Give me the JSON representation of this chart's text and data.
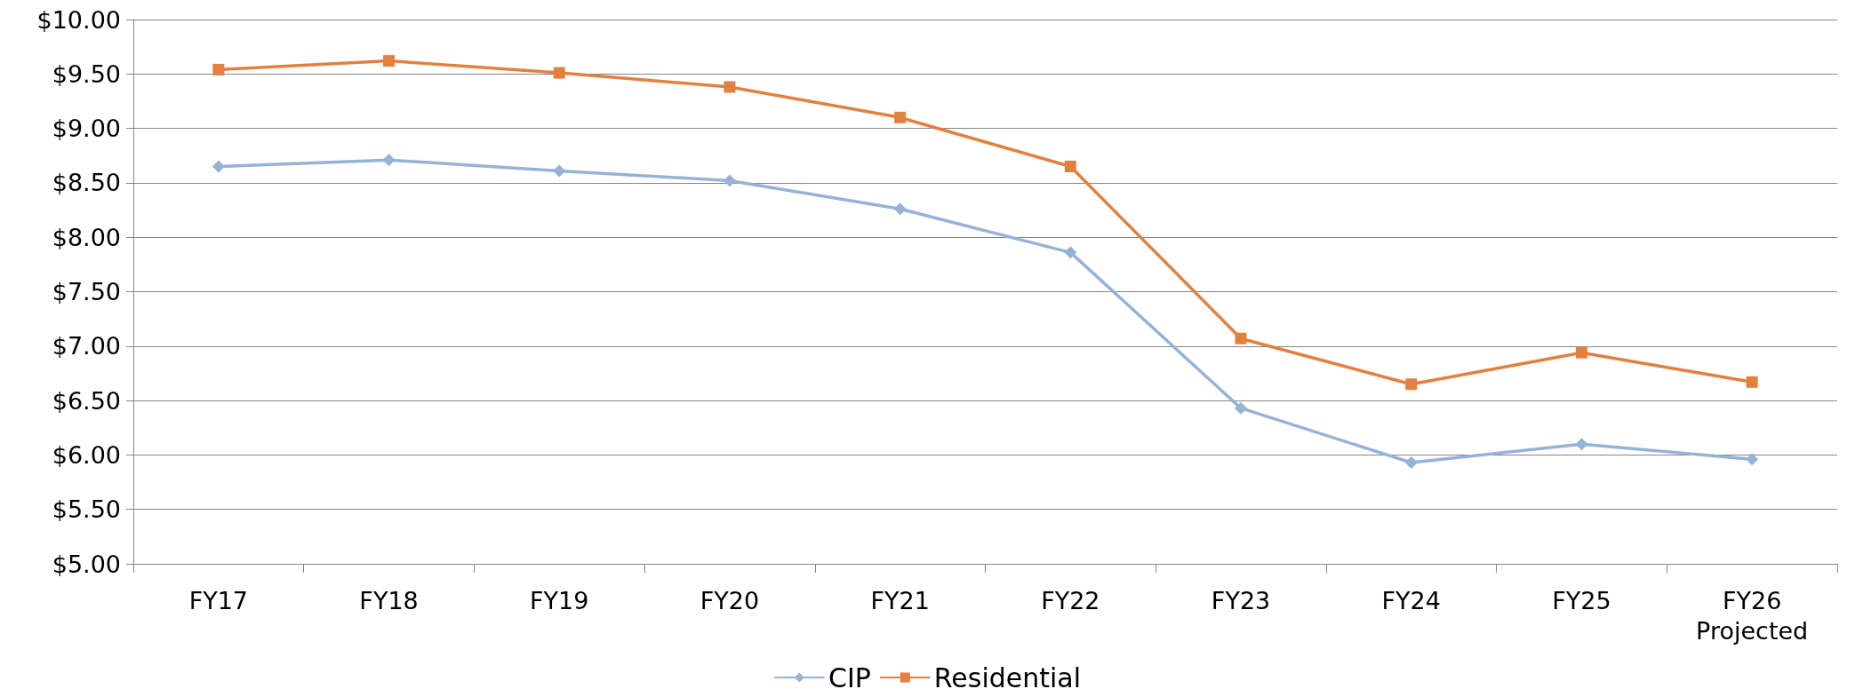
{
  "chart_data": {
    "type": "line",
    "categories": [
      "FY17",
      "FY18",
      "FY19",
      "FY20",
      "FY21",
      "FY22",
      "FY23",
      "FY24",
      "FY25",
      "FY26\nProjected"
    ],
    "series": [
      {
        "name": "CIP",
        "color": "#95b3d7",
        "marker": "diamond",
        "values": [
          8.65,
          8.71,
          8.61,
          8.52,
          8.26,
          7.86,
          6.43,
          5.93,
          6.1,
          5.96
        ]
      },
      {
        "name": "Residential",
        "color": "#e4803f",
        "marker": "square",
        "values": [
          9.54,
          9.62,
          9.51,
          9.38,
          9.1,
          8.65,
          7.07,
          6.65,
          6.94,
          6.67
        ]
      }
    ],
    "ylim": [
      5,
      10
    ],
    "yticks": [
      {
        "value": 5,
        "label": "$5.00"
      },
      {
        "value": 5.5,
        "label": "$5.50"
      },
      {
        "value": 6,
        "label": "$6.00"
      },
      {
        "value": 6.5,
        "label": "$6.50"
      },
      {
        "value": 7,
        "label": "$7.00"
      },
      {
        "value": 7.5,
        "label": "$7.50"
      },
      {
        "value": 8,
        "label": "$8.00"
      },
      {
        "value": 8.5,
        "label": "$8.50"
      },
      {
        "value": 9,
        "label": "$9.00"
      },
      {
        "value": 9.5,
        "label": "$9.50"
      },
      {
        "value": 10,
        "label": "$10.00"
      }
    ],
    "grid": "y",
    "legend": "bottom",
    "line_style": "solid"
  }
}
